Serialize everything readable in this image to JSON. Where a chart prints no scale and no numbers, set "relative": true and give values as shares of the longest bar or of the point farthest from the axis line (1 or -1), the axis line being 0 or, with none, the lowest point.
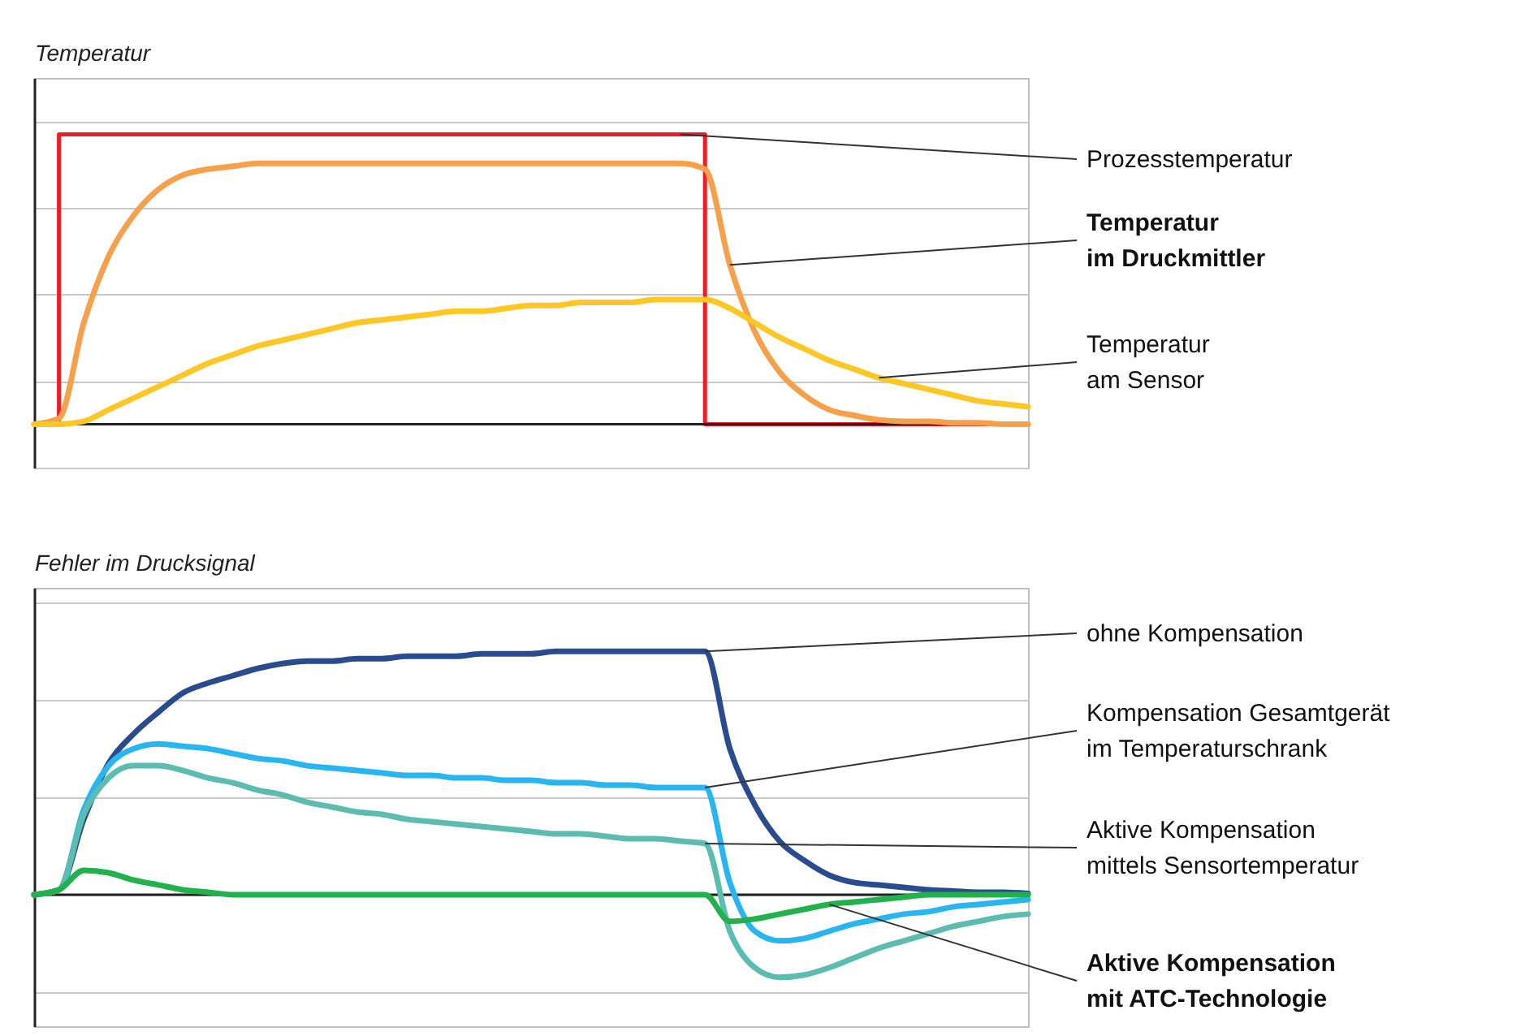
{
  "chart_data": [
    {
      "type": "line",
      "ylabel": "Temperatur",
      "relative": true,
      "grid": true,
      "categories": [
        null,
        null,
        null,
        null,
        null,
        null,
        null,
        null,
        null,
        null,
        null,
        null,
        null,
        null,
        null,
        null,
        null,
        null,
        null,
        null,
        null,
        null,
        null,
        null,
        null,
        null,
        null,
        null,
        null,
        null,
        null,
        null,
        null,
        null,
        null,
        null,
        null,
        null,
        null,
        null,
        null
      ],
      "series": [
        {
          "name": "Prozesstemperatur",
          "type": "step",
          "color": "#ee1c25",
          "values": [
            0,
            1,
            1,
            1,
            1,
            1,
            1,
            1,
            1,
            1,
            1,
            1,
            1,
            1,
            1,
            1,
            1,
            1,
            1,
            1,
            1,
            1,
            1,
            1,
            1,
            1,
            1,
            0,
            0,
            0,
            0,
            0,
            0,
            0,
            0,
            0,
            0,
            0,
            0,
            0,
            0
          ]
        },
        {
          "name": "Temperatur\nim Druckmittler",
          "color": "#f5a04a",
          "values": [
            0,
            0.02,
            0.35,
            0.58,
            0.72,
            0.81,
            0.86,
            0.88,
            0.89,
            0.9,
            0.9,
            0.9,
            0.9,
            0.9,
            0.9,
            0.9,
            0.9,
            0.9,
            0.9,
            0.9,
            0.9,
            0.9,
            0.9,
            0.9,
            0.9,
            0.9,
            0.9,
            0.88,
            0.55,
            0.32,
            0.18,
            0.1,
            0.05,
            0.03,
            0.015,
            0.01,
            0.01,
            0.005,
            0.005,
            0,
            0
          ]
        },
        {
          "name": "Temperatur\nam Sensor",
          "color": "#ffc726",
          "values": [
            0,
            0,
            0.01,
            0.05,
            0.09,
            0.13,
            0.17,
            0.21,
            0.24,
            0.27,
            0.29,
            0.31,
            0.33,
            0.35,
            0.36,
            0.37,
            0.38,
            0.39,
            0.39,
            0.4,
            0.41,
            0.41,
            0.42,
            0.42,
            0.42,
            0.43,
            0.43,
            0.43,
            0.4,
            0.35,
            0.3,
            0.26,
            0.22,
            0.19,
            0.16,
            0.14,
            0.12,
            0.1,
            0.08,
            0.07,
            0.06
          ]
        }
      ]
    },
    {
      "type": "line",
      "ylabel": "Fehler im Drucksignal",
      "relative": true,
      "grid": true,
      "categories": [
        null,
        null,
        null,
        null,
        null,
        null,
        null,
        null,
        null,
        null,
        null,
        null,
        null,
        null,
        null,
        null,
        null,
        null,
        null,
        null,
        null,
        null,
        null,
        null,
        null,
        null,
        null,
        null,
        null,
        null,
        null,
        null,
        null,
        null,
        null,
        null,
        null,
        null,
        null,
        null,
        null
      ],
      "series": [
        {
          "name": "ohne Kompensation",
          "color": "#2a4b8d",
          "values": [
            0,
            0.02,
            0.31,
            0.54,
            0.66,
            0.75,
            0.83,
            0.87,
            0.9,
            0.93,
            0.95,
            0.96,
            0.96,
            0.97,
            0.97,
            0.98,
            0.98,
            0.98,
            0.99,
            0.99,
            0.99,
            1,
            1,
            1,
            1,
            1,
            1,
            1,
            0.6,
            0.37,
            0.22,
            0.14,
            0.08,
            0.05,
            0.04,
            0.03,
            0.02,
            0.015,
            0.01,
            0.01,
            0.005
          ]
        },
        {
          "name": "Kompensation  Gesamtgerät\nim Temperaturschrank",
          "color": "#29b6f0",
          "values": [
            0,
            0.02,
            0.35,
            0.53,
            0.6,
            0.62,
            0.61,
            0.6,
            0.58,
            0.56,
            0.55,
            0.53,
            0.52,
            0.51,
            0.5,
            0.49,
            0.49,
            0.48,
            0.48,
            0.47,
            0.47,
            0.46,
            0.46,
            0.45,
            0.45,
            0.44,
            0.44,
            0.44,
            0.05,
            -0.15,
            -0.19,
            -0.18,
            -0.15,
            -0.12,
            -0.1,
            -0.08,
            -0.07,
            -0.05,
            -0.04,
            -0.03,
            -0.02
          ]
        },
        {
          "name": "Aktive Kompensation\nmittels Sensortemperatur",
          "color": "#5cbcb0",
          "values": [
            0,
            0.02,
            0.33,
            0.48,
            0.53,
            0.53,
            0.51,
            0.48,
            0.46,
            0.43,
            0.41,
            0.38,
            0.36,
            0.34,
            0.33,
            0.31,
            0.3,
            0.29,
            0.28,
            0.27,
            0.26,
            0.25,
            0.25,
            0.24,
            0.23,
            0.23,
            0.22,
            0.21,
            -0.15,
            -0.3,
            -0.34,
            -0.33,
            -0.3,
            -0.26,
            -0.22,
            -0.19,
            -0.16,
            -0.13,
            -0.11,
            -0.09,
            -0.08
          ]
        },
        {
          "name": "Aktive Kompensation\nmit ATC-Technologie",
          "color": "#22b14c",
          "values": [
            0,
            0.02,
            0.1,
            0.09,
            0.06,
            0.04,
            0.02,
            0.01,
            0,
            0,
            0,
            0,
            0,
            0,
            0,
            0,
            0,
            0,
            0,
            0,
            0,
            0,
            0,
            0,
            0,
            0,
            0,
            0,
            -0.11,
            -0.1,
            -0.08,
            -0.06,
            -0.04,
            -0.03,
            -0.02,
            -0.01,
            0,
            0,
            0,
            0,
            0
          ]
        }
      ]
    }
  ]
}
